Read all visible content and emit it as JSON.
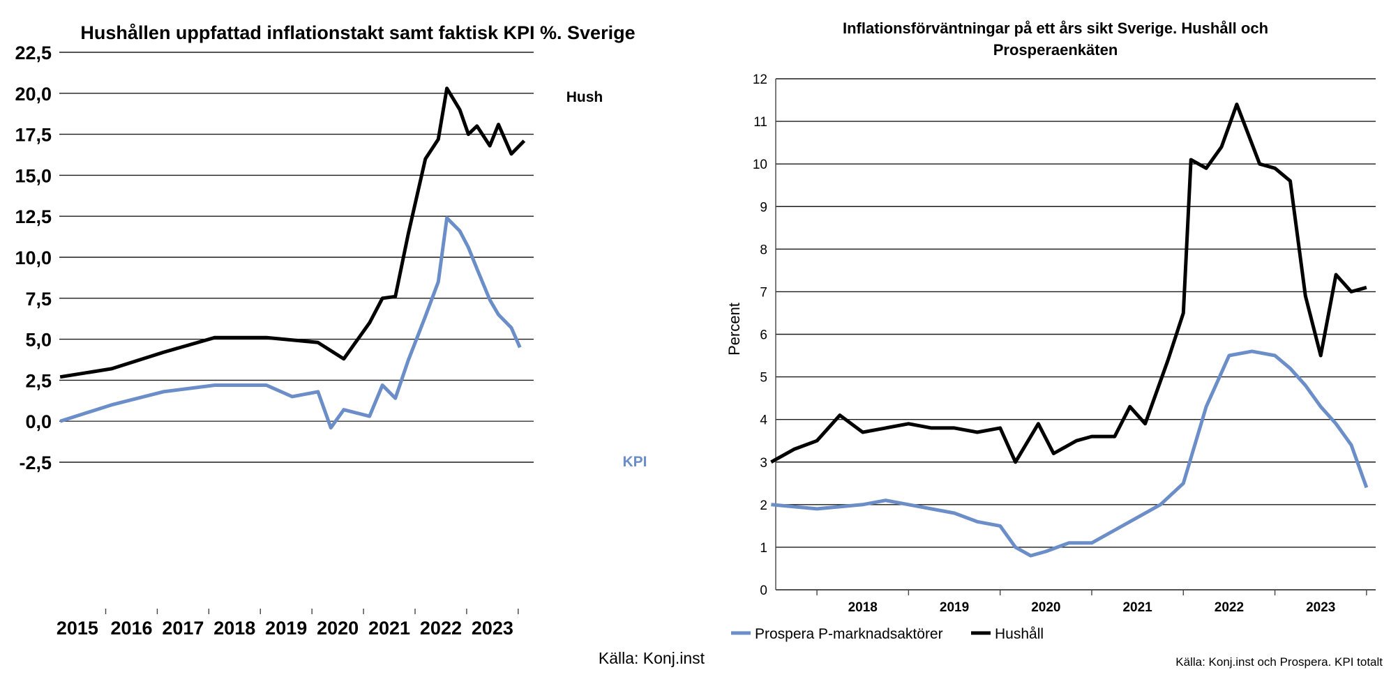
{
  "chart_data": [
    {
      "type": "line",
      "title": "Hushållen uppfattad inflationstakt samt faktisk KPI %. Sverige",
      "xlabel": "",
      "ylabel": "",
      "ylim": [
        -2.5,
        22.5
      ],
      "y_ticks": [
        "22,5",
        "20,0",
        "17,5",
        "15,0",
        "12,5",
        "10,0",
        "7,5",
        "5,0",
        "2,5",
        "0,0",
        "-2,5"
      ],
      "x_ticks": [
        "2015",
        "2016",
        "2017",
        "2018",
        "2019",
        "2020",
        "2021",
        "2022",
        "2023"
      ],
      "grid": true,
      "source": "Källa: Konj.inst",
      "series": [
        {
          "name": "Hush",
          "color": "#000000",
          "x": [
            "2014-12",
            "2015-12",
            "2016-12",
            "2017-12",
            "2018-12",
            "2019-12",
            "2020-06",
            "2020-12",
            "2021-03",
            "2021-06",
            "2021-09",
            "2022-01",
            "2022-04",
            "2022-06",
            "2022-09",
            "2022-11",
            "2023-01",
            "2023-04",
            "2023-06",
            "2023-09",
            "2023-12"
          ],
          "values": [
            2.7,
            3.2,
            4.2,
            5.1,
            5.1,
            4.8,
            3.8,
            6.0,
            7.5,
            7.6,
            11.4,
            16.0,
            17.2,
            20.3,
            19.0,
            17.5,
            18.0,
            16.8,
            18.1,
            16.3,
            17.1
          ]
        },
        {
          "name": "KPI",
          "color": "#6b8ec8",
          "x": [
            "2014-12",
            "2015-12",
            "2016-12",
            "2017-12",
            "2018-12",
            "2019-06",
            "2019-12",
            "2020-03",
            "2020-06",
            "2020-12",
            "2021-03",
            "2021-06",
            "2021-09",
            "2022-01",
            "2022-04",
            "2022-06",
            "2022-09",
            "2022-11",
            "2023-01",
            "2023-04",
            "2023-06",
            "2023-09",
            "2023-11"
          ],
          "values": [
            0.0,
            1.0,
            1.8,
            2.2,
            2.2,
            1.5,
            1.8,
            -0.4,
            0.7,
            0.3,
            2.2,
            1.4,
            3.7,
            6.4,
            8.5,
            12.4,
            11.6,
            10.6,
            9.3,
            7.4,
            6.5,
            5.7,
            4.5
          ]
        }
      ]
    },
    {
      "type": "line",
      "title": "Inflationsförväntningar på ett års sikt Sverige. Hushåll och Prosperaenkäten",
      "xlabel": "",
      "ylabel": "Percent",
      "ylim": [
        0,
        12
      ],
      "y_ticks": [
        "12",
        "11",
        "10",
        "9",
        "8",
        "7",
        "6",
        "5",
        "4",
        "3",
        "2",
        "1",
        "0"
      ],
      "x_ticks": [
        "2018",
        "2019",
        "2020",
        "2021",
        "2022",
        "2023"
      ],
      "grid": true,
      "legend": "bottom",
      "source": "Källa: Konj.inst och Prospera. KPI totalt",
      "series": [
        {
          "name": "Prospera P-marknadsaktörer",
          "color": "#6b8ec8",
          "x": [
            "2017-07",
            "2018-01",
            "2018-07",
            "2018-10",
            "2019-01",
            "2019-07",
            "2019-10",
            "2020-01",
            "2020-03",
            "2020-05",
            "2020-07",
            "2020-10",
            "2021-01",
            "2021-04",
            "2021-07",
            "2021-10",
            "2022-01",
            "2022-04",
            "2022-07",
            "2022-10",
            "2023-01",
            "2023-03",
            "2023-05",
            "2023-07",
            "2023-09",
            "2023-11",
            "2024-01"
          ],
          "values": [
            2.0,
            1.9,
            2.0,
            2.1,
            2.0,
            1.8,
            1.6,
            1.5,
            1.0,
            0.8,
            0.9,
            1.1,
            1.1,
            1.4,
            1.7,
            2.0,
            2.5,
            4.3,
            5.5,
            5.6,
            5.5,
            5.2,
            4.8,
            4.3,
            3.9,
            3.4,
            2.4
          ]
        },
        {
          "name": "Hushåll",
          "color": "#000000",
          "x": [
            "2017-07",
            "2017-10",
            "2018-01",
            "2018-04",
            "2018-07",
            "2018-10",
            "2019-01",
            "2019-04",
            "2019-07",
            "2019-10",
            "2020-01",
            "2020-03",
            "2020-06",
            "2020-08",
            "2020-11",
            "2021-01",
            "2021-04",
            "2021-06",
            "2021-08",
            "2021-11",
            "2022-01",
            "2022-02",
            "2022-04",
            "2022-06",
            "2022-08",
            "2022-11",
            "2023-01",
            "2023-03",
            "2023-05",
            "2023-07",
            "2023-09",
            "2023-11",
            "2024-01"
          ],
          "values": [
            3.0,
            3.3,
            3.5,
            4.1,
            3.7,
            3.8,
            3.9,
            3.8,
            3.8,
            3.7,
            3.8,
            3.0,
            3.9,
            3.2,
            3.5,
            3.6,
            3.6,
            4.3,
            3.9,
            5.4,
            6.5,
            10.1,
            9.9,
            10.4,
            11.4,
            10.0,
            9.9,
            9.6,
            6.9,
            5.5,
            7.4,
            7.0,
            7.1
          ]
        }
      ]
    }
  ]
}
